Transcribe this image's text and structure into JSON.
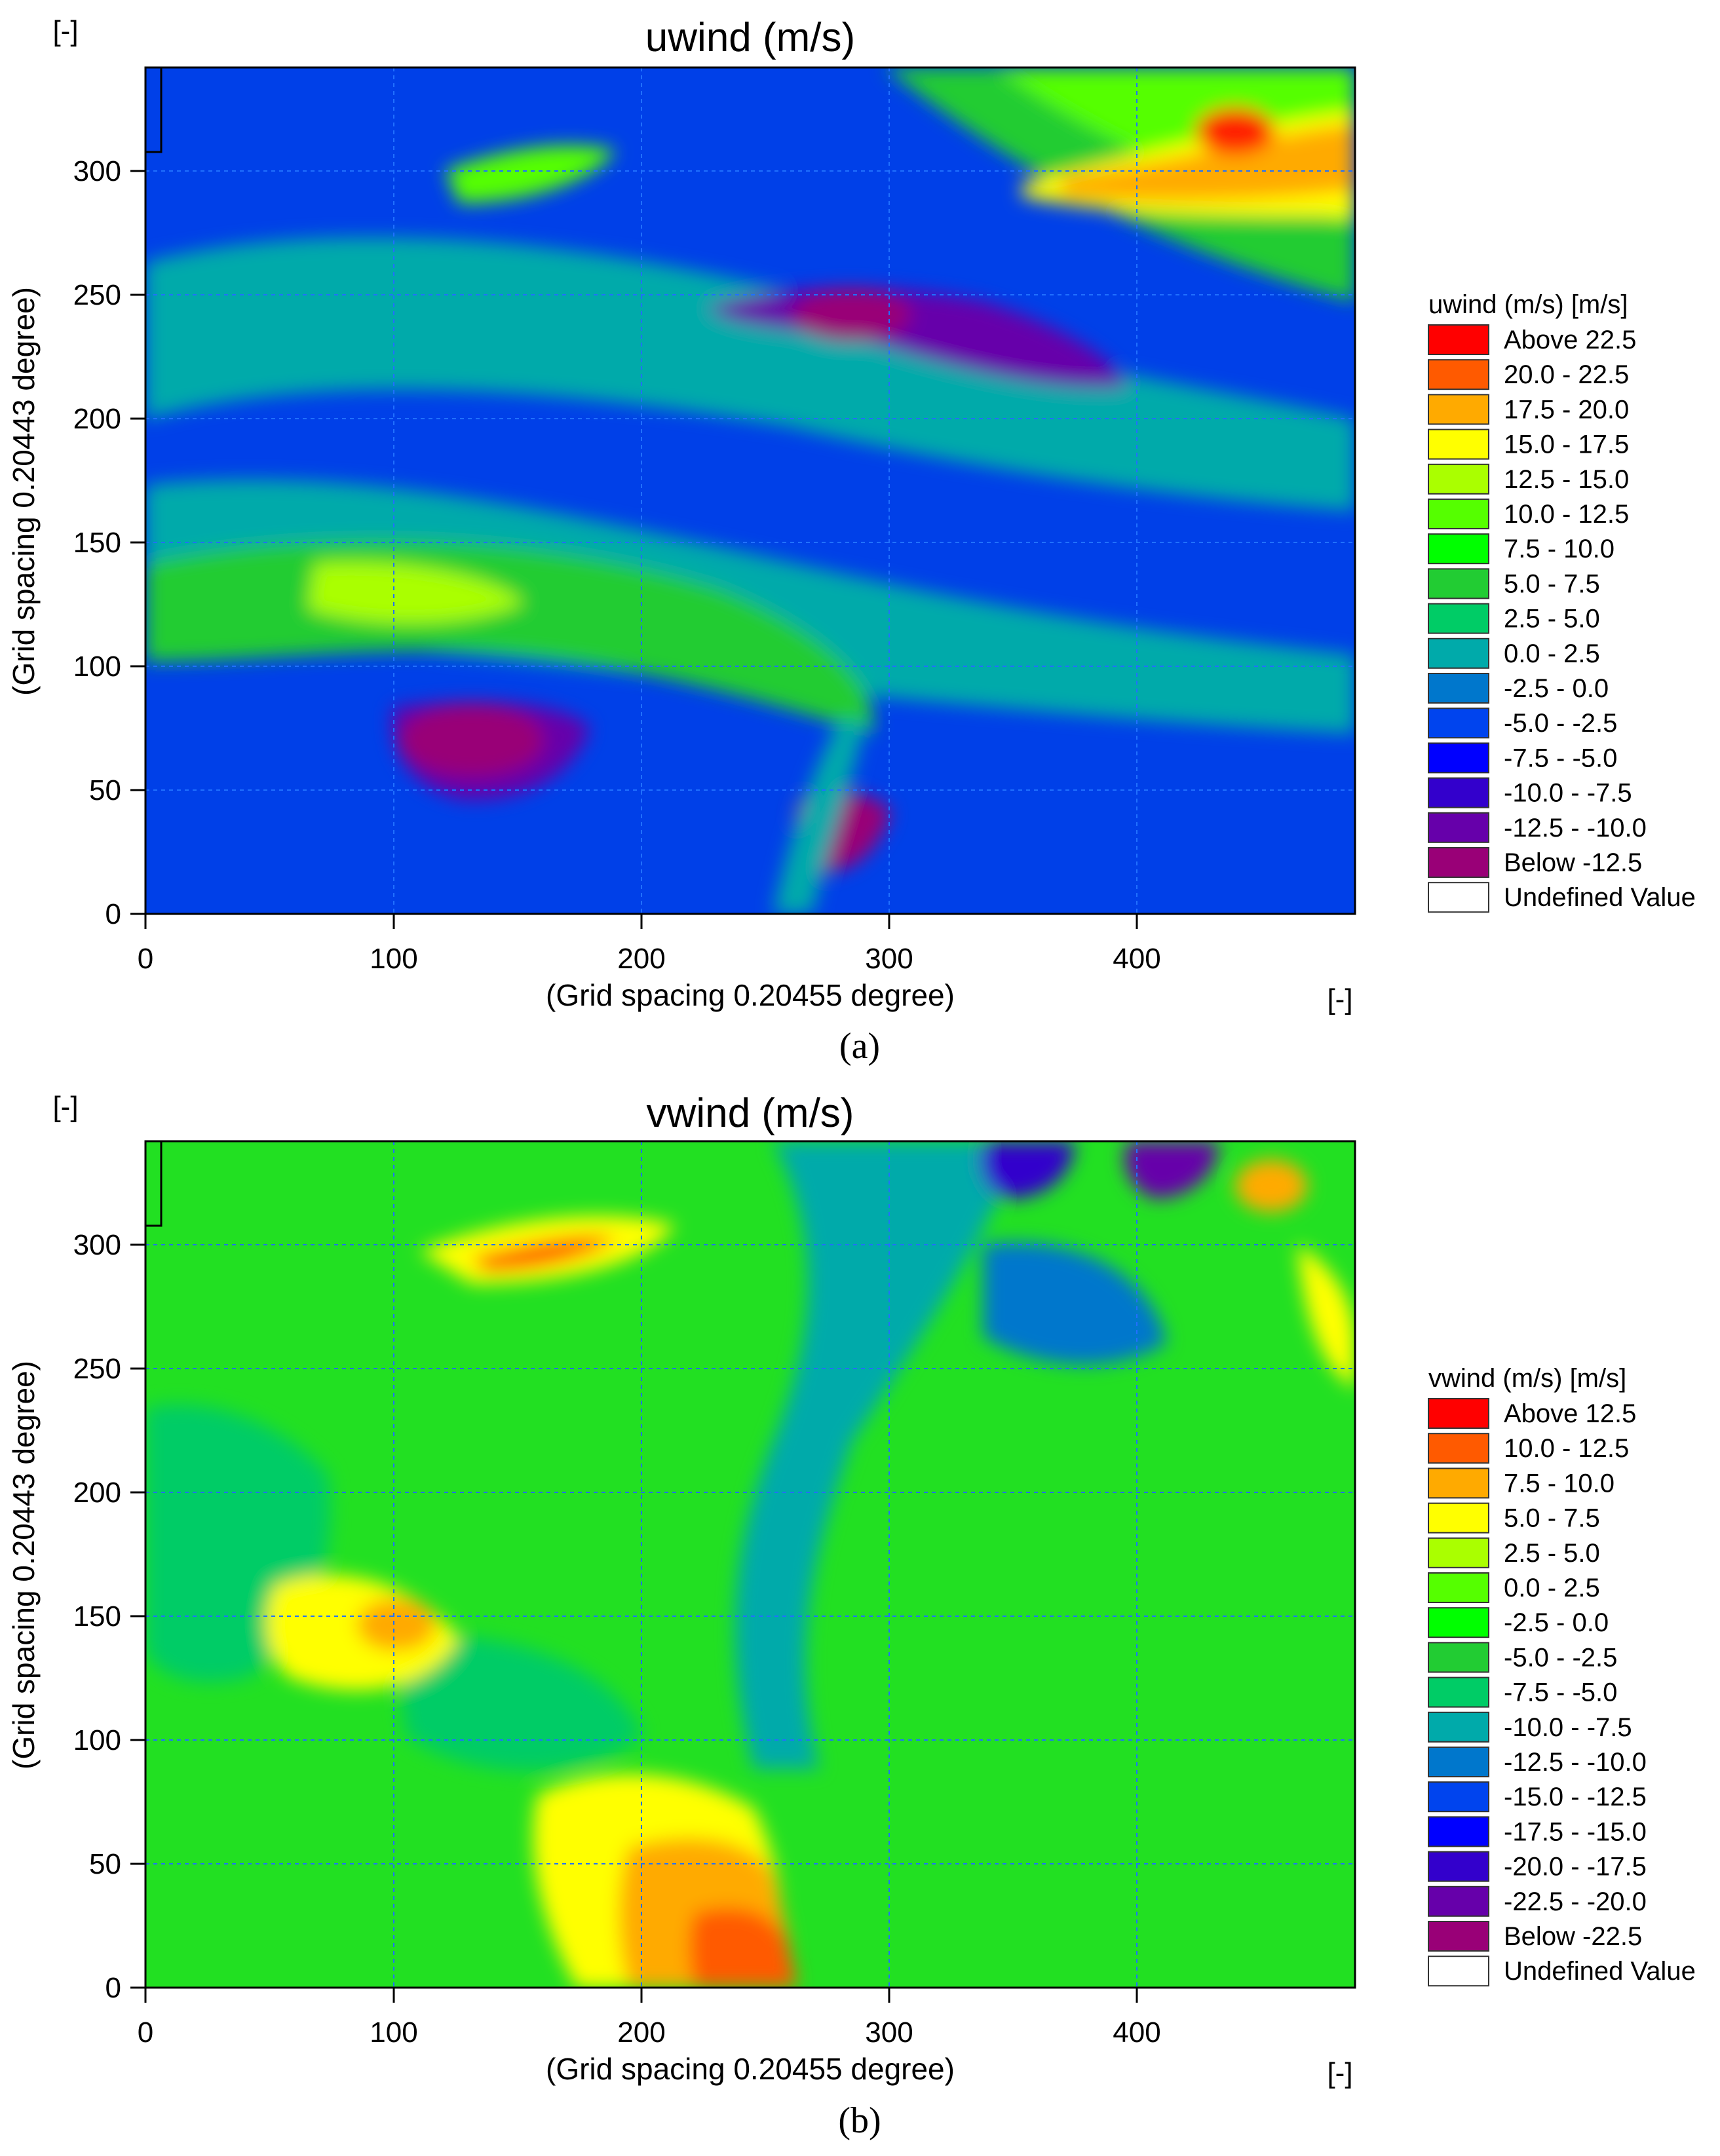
{
  "figure": {
    "captions": [
      "(a)",
      "(b)"
    ]
  },
  "chart_data": [
    {
      "type": "heatmap",
      "panel_caption": "(a)",
      "title": "uwind (m/s)",
      "xlabel": "(Grid spacing 0.20455 degree)",
      "ylabel": "(Grid spacing 0.20443 degree)",
      "x_unit": "[-]",
      "y_unit": "[-]",
      "xlim": [
        0,
        487
      ],
      "ylim": [
        0,
        342
      ],
      "xticks": [
        0,
        100,
        200,
        300,
        400
      ],
      "yticks": [
        0,
        50,
        100,
        150,
        200,
        250,
        300
      ],
      "grid": true,
      "legend_position": "right",
      "legend": {
        "title": "uwind (m/s) [m/s]",
        "entries": [
          {
            "label": "Above  22.5",
            "color": "#ff0000"
          },
          {
            "label": "20.0 -  22.5",
            "color": "#ff5a00"
          },
          {
            "label": "17.5 -  20.0",
            "color": "#ffaa00"
          },
          {
            "label": "15.0 -  17.5",
            "color": "#ffff00"
          },
          {
            "label": "12.5 -  15.0",
            "color": "#aaff00"
          },
          {
            "label": "10.0 -  12.5",
            "color": "#55ff00"
          },
          {
            "label": "7.5 -  10.0",
            "color": "#00ff00"
          },
          {
            "label": "5.0 -    7.5",
            "color": "#22cc33"
          },
          {
            "label": "2.5 -    5.0",
            "color": "#00cc66"
          },
          {
            "label": "0.0 -    2.5",
            "color": "#00aaaa"
          },
          {
            "label": "-2.5 -    0.0",
            "color": "#0077cc"
          },
          {
            "label": "-5.0 -   -2.5",
            "color": "#0044ee"
          },
          {
            "label": "-7.5 -   -5.0",
            "color": "#0000ff"
          },
          {
            "label": "-10.0 -   -7.5",
            "color": "#3300cc"
          },
          {
            "label": "-12.5 - -10.0",
            "color": "#6600aa"
          },
          {
            "label": "Below -12.5",
            "color": "#990077"
          },
          {
            "label": "Undefined Value",
            "color": "#ffffff"
          }
        ]
      },
      "regions": [
        {
          "name": "upper-right jet max",
          "x": 440,
          "y": 315,
          "value": 23
        },
        {
          "name": "upper-right jet band",
          "x": 440,
          "y": 300,
          "value": 20
        },
        {
          "name": "northern green band",
          "x": 380,
          "y": 270,
          "value": 9
        },
        {
          "name": "central purple streak",
          "x": 300,
          "y": 230,
          "value": -13
        },
        {
          "name": "central green band",
          "x": 130,
          "y": 130,
          "value": 11
        },
        {
          "name": "lower-left purple patch",
          "x": 130,
          "y": 65,
          "value": -13
        },
        {
          "name": "lower-center purple patch",
          "x": 275,
          "y": 35,
          "value": -13
        },
        {
          "name": "lower blue region",
          "x": 60,
          "y": 40,
          "value": -7
        }
      ]
    },
    {
      "type": "heatmap",
      "panel_caption": "(b)",
      "title": "vwind (m/s)",
      "xlabel": "(Grid spacing 0.20455 degree)",
      "ylabel": "(Grid spacing 0.20443 degree)",
      "x_unit": "[-]",
      "y_unit": "[-]",
      "xlim": [
        0,
        487
      ],
      "ylim": [
        0,
        342
      ],
      "xticks": [
        0,
        100,
        200,
        300,
        400
      ],
      "yticks": [
        0,
        50,
        100,
        150,
        200,
        250,
        300
      ],
      "grid": true,
      "legend_position": "right",
      "legend": {
        "title": "vwind (m/s) [m/s]",
        "entries": [
          {
            "label": "Above  12.5",
            "color": "#ff0000"
          },
          {
            "label": "10.0 -  12.5",
            "color": "#ff5a00"
          },
          {
            "label": "7.5 -  10.0",
            "color": "#ffaa00"
          },
          {
            "label": "5.0 -    7.5",
            "color": "#ffff00"
          },
          {
            "label": "2.5 -    5.0",
            "color": "#aaff00"
          },
          {
            "label": "0.0 -    2.5",
            "color": "#55ff00"
          },
          {
            "label": "-2.5 -    0.0",
            "color": "#00ff00"
          },
          {
            "label": "-5.0 -   -2.5",
            "color": "#22cc33"
          },
          {
            "label": "-7.5 -   -5.0",
            "color": "#00cc66"
          },
          {
            "label": "-10.0 -   -7.5",
            "color": "#00aaaa"
          },
          {
            "label": "-12.5 - -10.0",
            "color": "#0077cc"
          },
          {
            "label": "-15.0 - -12.5",
            "color": "#0044ee"
          },
          {
            "label": "-17.5 - -15.0",
            "color": "#0000ff"
          },
          {
            "label": "-20.0 - -17.5",
            "color": "#3300cc"
          },
          {
            "label": "-22.5 - -20.0",
            "color": "#6600aa"
          },
          {
            "label": "Below -22.5",
            "color": "#990077"
          },
          {
            "label": "Undefined Value",
            "color": "#ffffff"
          }
        ]
      },
      "regions": [
        {
          "name": "lower-center orange-red patch",
          "x": 245,
          "y": 20,
          "value": 11
        },
        {
          "name": "lower-left yellow patch",
          "x": 100,
          "y": 80,
          "value": 7
        },
        {
          "name": "upper-left yellow streak",
          "x": 180,
          "y": 300,
          "value": 6
        },
        {
          "name": "upper-right orange spot",
          "x": 455,
          "y": 325,
          "value": 8
        },
        {
          "name": "top blue vortices",
          "x": 400,
          "y": 330,
          "value": -19
        },
        {
          "name": "central blue diagonal",
          "x": 320,
          "y": 220,
          "value": -12
        },
        {
          "name": "background green",
          "x": 150,
          "y": 200,
          "value": -2
        }
      ]
    }
  ]
}
